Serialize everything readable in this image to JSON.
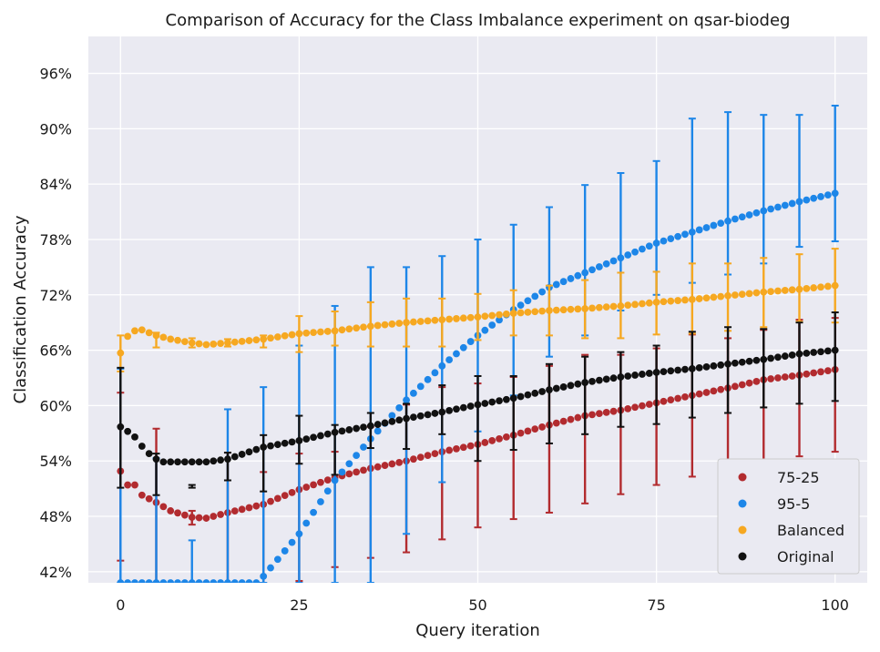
{
  "chart_data": {
    "type": "scatter",
    "title": "Comparison of Accuracy for the Class Imbalance experiment on qsar-biodeg",
    "xlabel": "Query iteration",
    "ylabel": "Classification Accuracy",
    "xlim": [
      -4.5,
      104.5
    ],
    "ylim": [
      40.8,
      100.0
    ],
    "xticks": [
      0,
      25,
      50,
      75,
      100
    ],
    "yticks": [
      42,
      48,
      54,
      60,
      66,
      72,
      78,
      84,
      90,
      96
    ],
    "ytick_format": "percent",
    "grid": true,
    "legend_position": "bottom-right",
    "error_bar_every": 5,
    "series": [
      {
        "name": "75-25",
        "color": "#b22b2f",
        "anchors": [
          [
            0,
            52.9
          ],
          [
            1,
            51.4
          ],
          [
            2,
            51.4
          ],
          [
            3,
            50.3
          ],
          [
            5,
            49.5
          ],
          [
            7,
            48.6
          ],
          [
            10,
            47.9
          ],
          [
            12,
            47.8
          ],
          [
            15,
            48.4
          ],
          [
            20,
            49.3
          ],
          [
            25,
            50.9
          ],
          [
            30,
            52.2
          ],
          [
            35,
            53.2
          ],
          [
            40,
            54.0
          ],
          [
            45,
            55.0
          ],
          [
            50,
            55.8
          ],
          [
            55,
            56.8
          ],
          [
            60,
            57.9
          ],
          [
            65,
            58.9
          ],
          [
            70,
            59.5
          ],
          [
            75,
            60.3
          ],
          [
            80,
            61.1
          ],
          [
            85,
            61.9
          ],
          [
            90,
            62.8
          ],
          [
            95,
            63.3
          ],
          [
            100,
            63.9
          ]
        ],
        "error": [
          [
            0,
            43.2,
            61.4
          ],
          [
            5,
            40.8,
            57.5
          ],
          [
            10,
            47.1,
            48.6
          ],
          [
            15,
            40.8,
            54.9
          ],
          [
            20,
            40.8,
            52.8
          ],
          [
            25,
            41.0,
            54.8
          ],
          [
            30,
            42.5,
            55.0
          ],
          [
            35,
            43.5,
            57.7
          ],
          [
            40,
            44.1,
            60.1
          ],
          [
            45,
            45.5,
            62.0
          ],
          [
            50,
            46.8,
            62.4
          ],
          [
            55,
            47.7,
            63.1
          ],
          [
            60,
            48.4,
            64.3
          ],
          [
            65,
            49.4,
            65.5
          ],
          [
            70,
            50.4,
            65.5
          ],
          [
            75,
            51.4,
            66.2
          ],
          [
            80,
            52.3,
            67.7
          ],
          [
            85,
            53.0,
            67.3
          ],
          [
            90,
            53.6,
            68.2
          ],
          [
            95,
            54.5,
            69.3
          ],
          [
            100,
            55.0,
            69.5
          ]
        ]
      },
      {
        "name": "95-5",
        "color": "#1d86e8",
        "anchors": [
          [
            0,
            40.8
          ],
          [
            19,
            40.8
          ],
          [
            20,
            41.5
          ],
          [
            25,
            46.1
          ],
          [
            30,
            51.9
          ],
          [
            35,
            56.4
          ],
          [
            40,
            60.6
          ],
          [
            45,
            64.3
          ],
          [
            50,
            67.6
          ],
          [
            55,
            70.4
          ],
          [
            60,
            72.8
          ],
          [
            65,
            74.4
          ],
          [
            70,
            76.0
          ],
          [
            75,
            77.6
          ],
          [
            80,
            78.8
          ],
          [
            85,
            80.0
          ],
          [
            90,
            81.1
          ],
          [
            95,
            82.1
          ],
          [
            100,
            83.0
          ]
        ],
        "error": [
          [
            0,
            40.8,
            64.0
          ],
          [
            5,
            40.8,
            54.3
          ],
          [
            10,
            40.8,
            45.4
          ],
          [
            15,
            40.8,
            59.6
          ],
          [
            20,
            40.8,
            62.0
          ],
          [
            25,
            40.8,
            66.5
          ],
          [
            30,
            40.8,
            70.8
          ],
          [
            35,
            40.8,
            75.0
          ],
          [
            40,
            46.1,
            75.0
          ],
          [
            45,
            51.7,
            76.2
          ],
          [
            50,
            57.2,
            78.0
          ],
          [
            55,
            61.1,
            79.6
          ],
          [
            60,
            65.3,
            81.5
          ],
          [
            65,
            67.6,
            83.9
          ],
          [
            70,
            70.3,
            85.2
          ],
          [
            75,
            72.0,
            86.5
          ],
          [
            80,
            73.3,
            91.1
          ],
          [
            85,
            74.2,
            91.8
          ],
          [
            90,
            75.4,
            91.5
          ],
          [
            95,
            77.2,
            91.5
          ],
          [
            100,
            77.8,
            92.5
          ]
        ]
      },
      {
        "name": "Balanced",
        "color": "#f6a821",
        "anchors": [
          [
            0,
            65.7
          ],
          [
            1,
            67.5
          ],
          [
            2,
            68.1
          ],
          [
            3,
            68.2
          ],
          [
            5,
            67.6
          ],
          [
            7,
            67.2
          ],
          [
            10,
            66.8
          ],
          [
            12,
            66.6
          ],
          [
            15,
            66.8
          ],
          [
            20,
            67.2
          ],
          [
            25,
            67.8
          ],
          [
            30,
            68.1
          ],
          [
            35,
            68.6
          ],
          [
            40,
            69.0
          ],
          [
            45,
            69.3
          ],
          [
            50,
            69.6
          ],
          [
            55,
            70.0
          ],
          [
            60,
            70.3
          ],
          [
            65,
            70.5
          ],
          [
            70,
            70.8
          ],
          [
            75,
            71.2
          ],
          [
            80,
            71.5
          ],
          [
            85,
            71.9
          ],
          [
            90,
            72.3
          ],
          [
            95,
            72.6
          ],
          [
            100,
            73.0
          ]
        ],
        "error": [
          [
            0,
            63.7,
            67.6
          ],
          [
            5,
            66.3,
            67.9
          ],
          [
            10,
            66.3,
            67.3
          ],
          [
            15,
            66.4,
            67.2
          ],
          [
            20,
            66.3,
            67.6
          ],
          [
            25,
            65.8,
            69.7
          ],
          [
            30,
            66.5,
            70.2
          ],
          [
            35,
            66.4,
            71.2
          ],
          [
            40,
            66.4,
            71.6
          ],
          [
            45,
            66.4,
            71.6
          ],
          [
            50,
            67.1,
            72.1
          ],
          [
            55,
            67.6,
            72.5
          ],
          [
            60,
            67.6,
            73.0
          ],
          [
            65,
            67.3,
            73.6
          ],
          [
            70,
            67.3,
            74.4
          ],
          [
            75,
            67.7,
            74.5
          ],
          [
            80,
            67.8,
            75.4
          ],
          [
            85,
            68.1,
            75.4
          ],
          [
            90,
            68.5,
            76.0
          ],
          [
            95,
            69.1,
            76.4
          ],
          [
            100,
            69.0,
            77.0
          ]
        ]
      },
      {
        "name": "Original",
        "color": "#111111",
        "anchors": [
          [
            0,
            57.7
          ],
          [
            1,
            57.2
          ],
          [
            2,
            56.6
          ],
          [
            3,
            55.6
          ],
          [
            4,
            54.8
          ],
          [
            5,
            54.2
          ],
          [
            6,
            53.9
          ],
          [
            10,
            53.9
          ],
          [
            12,
            53.9
          ],
          [
            15,
            54.2
          ],
          [
            20,
            55.5
          ],
          [
            25,
            56.2
          ],
          [
            30,
            57.1
          ],
          [
            35,
            57.8
          ],
          [
            40,
            58.6
          ],
          [
            45,
            59.3
          ],
          [
            50,
            60.1
          ],
          [
            55,
            60.8
          ],
          [
            60,
            61.7
          ],
          [
            65,
            62.5
          ],
          [
            70,
            63.1
          ],
          [
            75,
            63.6
          ],
          [
            80,
            64.0
          ],
          [
            85,
            64.5
          ],
          [
            90,
            65.0
          ],
          [
            95,
            65.6
          ],
          [
            100,
            66.0
          ]
        ],
        "error": [
          [
            0,
            51.1,
            64.1
          ],
          [
            5,
            50.3,
            54.8
          ],
          [
            10,
            51.4,
            51.1
          ],
          [
            15,
            51.9,
            54.9
          ],
          [
            20,
            50.7,
            56.8
          ],
          [
            25,
            53.7,
            58.9
          ],
          [
            30,
            52.5,
            57.9
          ],
          [
            35,
            55.4,
            59.2
          ],
          [
            40,
            55.3,
            60.2
          ],
          [
            45,
            56.9,
            62.2
          ],
          [
            50,
            54.0,
            63.2
          ],
          [
            55,
            55.2,
            63.2
          ],
          [
            60,
            55.9,
            64.5
          ],
          [
            65,
            56.9,
            65.3
          ],
          [
            70,
            57.7,
            65.8
          ],
          [
            75,
            58.0,
            66.5
          ],
          [
            80,
            58.7,
            68.0
          ],
          [
            85,
            59.2,
            68.5
          ],
          [
            90,
            59.8,
            68.3
          ],
          [
            95,
            60.2,
            69.0
          ],
          [
            100,
            60.5,
            70.1
          ]
        ]
      }
    ]
  }
}
